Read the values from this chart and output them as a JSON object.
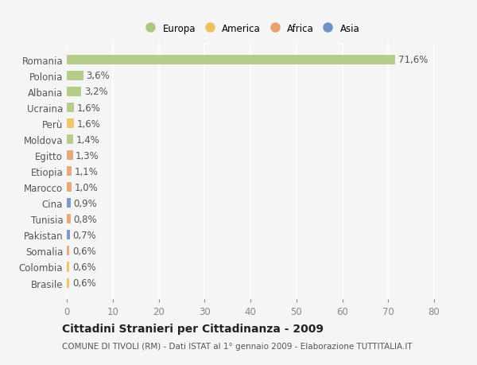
{
  "countries": [
    "Romania",
    "Polonia",
    "Albania",
    "Ucraina",
    "Perù",
    "Moldova",
    "Egitto",
    "Etiopia",
    "Marocco",
    "Cina",
    "Tunisia",
    "Pakistan",
    "Somalia",
    "Colombia",
    "Brasile"
  ],
  "values": [
    71.6,
    3.6,
    3.2,
    1.6,
    1.6,
    1.4,
    1.3,
    1.1,
    1.0,
    0.9,
    0.8,
    0.7,
    0.6,
    0.6,
    0.6
  ],
  "labels": [
    "71,6%",
    "3,6%",
    "3,2%",
    "1,6%",
    "1,6%",
    "1,4%",
    "1,3%",
    "1,1%",
    "1,0%",
    "0,9%",
    "0,8%",
    "0,7%",
    "0,6%",
    "0,6%",
    "0,6%"
  ],
  "continents": [
    "Europa",
    "Europa",
    "Europa",
    "Europa",
    "America",
    "Europa",
    "Africa",
    "Africa",
    "Africa",
    "Asia",
    "Africa",
    "Asia",
    "Africa",
    "America",
    "America"
  ],
  "colors": {
    "Europa": "#adc97e",
    "America": "#f0c060",
    "Africa": "#e8a070",
    "Asia": "#7090c8"
  },
  "legend_labels": [
    "Europa",
    "America",
    "Africa",
    "Asia"
  ],
  "legend_colors": [
    "#adc97e",
    "#f0c060",
    "#e8a070",
    "#7090c8"
  ],
  "xlim": [
    0,
    80
  ],
  "xticks": [
    0,
    10,
    20,
    30,
    40,
    50,
    60,
    70,
    80
  ],
  "title": "Cittadini Stranieri per Cittadinanza - 2009",
  "subtitle": "COMUNE DI TIVOLI (RM) - Dati ISTAT al 1° gennaio 2009 - Elaborazione TUTTITALIA.IT",
  "bg_color": "#f5f5f5",
  "bar_height": 0.6,
  "label_fontsize": 8.5,
  "tick_fontsize": 8.5,
  "title_fontsize": 10,
  "subtitle_fontsize": 7.5
}
